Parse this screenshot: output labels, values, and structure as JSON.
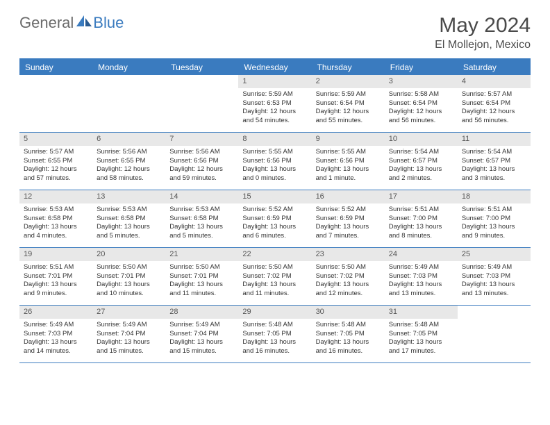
{
  "logo": {
    "text1": "General",
    "text2": "Blue"
  },
  "title": "May 2024",
  "location": "El Mollejon, Mexico",
  "colors": {
    "accent": "#3a7bbf",
    "dayNumBg": "#e8e8e8",
    "text": "#333333",
    "logoGray": "#6b6b6b"
  },
  "weekdays": [
    "Sunday",
    "Monday",
    "Tuesday",
    "Wednesday",
    "Thursday",
    "Friday",
    "Saturday"
  ],
  "weeks": [
    [
      null,
      null,
      null,
      {
        "n": "1",
        "sr": "5:59 AM",
        "ss": "6:53 PM",
        "dl": "12 hours and 54 minutes."
      },
      {
        "n": "2",
        "sr": "5:59 AM",
        "ss": "6:54 PM",
        "dl": "12 hours and 55 minutes."
      },
      {
        "n": "3",
        "sr": "5:58 AM",
        "ss": "6:54 PM",
        "dl": "12 hours and 56 minutes."
      },
      {
        "n": "4",
        "sr": "5:57 AM",
        "ss": "6:54 PM",
        "dl": "12 hours and 56 minutes."
      }
    ],
    [
      {
        "n": "5",
        "sr": "5:57 AM",
        "ss": "6:55 PM",
        "dl": "12 hours and 57 minutes."
      },
      {
        "n": "6",
        "sr": "5:56 AM",
        "ss": "6:55 PM",
        "dl": "12 hours and 58 minutes."
      },
      {
        "n": "7",
        "sr": "5:56 AM",
        "ss": "6:56 PM",
        "dl": "12 hours and 59 minutes."
      },
      {
        "n": "8",
        "sr": "5:55 AM",
        "ss": "6:56 PM",
        "dl": "13 hours and 0 minutes."
      },
      {
        "n": "9",
        "sr": "5:55 AM",
        "ss": "6:56 PM",
        "dl": "13 hours and 1 minute."
      },
      {
        "n": "10",
        "sr": "5:54 AM",
        "ss": "6:57 PM",
        "dl": "13 hours and 2 minutes."
      },
      {
        "n": "11",
        "sr": "5:54 AM",
        "ss": "6:57 PM",
        "dl": "13 hours and 3 minutes."
      }
    ],
    [
      {
        "n": "12",
        "sr": "5:53 AM",
        "ss": "6:58 PM",
        "dl": "13 hours and 4 minutes."
      },
      {
        "n": "13",
        "sr": "5:53 AM",
        "ss": "6:58 PM",
        "dl": "13 hours and 5 minutes."
      },
      {
        "n": "14",
        "sr": "5:53 AM",
        "ss": "6:58 PM",
        "dl": "13 hours and 5 minutes."
      },
      {
        "n": "15",
        "sr": "5:52 AM",
        "ss": "6:59 PM",
        "dl": "13 hours and 6 minutes."
      },
      {
        "n": "16",
        "sr": "5:52 AM",
        "ss": "6:59 PM",
        "dl": "13 hours and 7 minutes."
      },
      {
        "n": "17",
        "sr": "5:51 AM",
        "ss": "7:00 PM",
        "dl": "13 hours and 8 minutes."
      },
      {
        "n": "18",
        "sr": "5:51 AM",
        "ss": "7:00 PM",
        "dl": "13 hours and 9 minutes."
      }
    ],
    [
      {
        "n": "19",
        "sr": "5:51 AM",
        "ss": "7:01 PM",
        "dl": "13 hours and 9 minutes."
      },
      {
        "n": "20",
        "sr": "5:50 AM",
        "ss": "7:01 PM",
        "dl": "13 hours and 10 minutes."
      },
      {
        "n": "21",
        "sr": "5:50 AM",
        "ss": "7:01 PM",
        "dl": "13 hours and 11 minutes."
      },
      {
        "n": "22",
        "sr": "5:50 AM",
        "ss": "7:02 PM",
        "dl": "13 hours and 11 minutes."
      },
      {
        "n": "23",
        "sr": "5:50 AM",
        "ss": "7:02 PM",
        "dl": "13 hours and 12 minutes."
      },
      {
        "n": "24",
        "sr": "5:49 AM",
        "ss": "7:03 PM",
        "dl": "13 hours and 13 minutes."
      },
      {
        "n": "25",
        "sr": "5:49 AM",
        "ss": "7:03 PM",
        "dl": "13 hours and 13 minutes."
      }
    ],
    [
      {
        "n": "26",
        "sr": "5:49 AM",
        "ss": "7:03 PM",
        "dl": "13 hours and 14 minutes."
      },
      {
        "n": "27",
        "sr": "5:49 AM",
        "ss": "7:04 PM",
        "dl": "13 hours and 15 minutes."
      },
      {
        "n": "28",
        "sr": "5:49 AM",
        "ss": "7:04 PM",
        "dl": "13 hours and 15 minutes."
      },
      {
        "n": "29",
        "sr": "5:48 AM",
        "ss": "7:05 PM",
        "dl": "13 hours and 16 minutes."
      },
      {
        "n": "30",
        "sr": "5:48 AM",
        "ss": "7:05 PM",
        "dl": "13 hours and 16 minutes."
      },
      {
        "n": "31",
        "sr": "5:48 AM",
        "ss": "7:05 PM",
        "dl": "13 hours and 17 minutes."
      },
      null
    ]
  ],
  "labels": {
    "sunrise": "Sunrise: ",
    "sunset": "Sunset: ",
    "daylight": "Daylight: "
  }
}
